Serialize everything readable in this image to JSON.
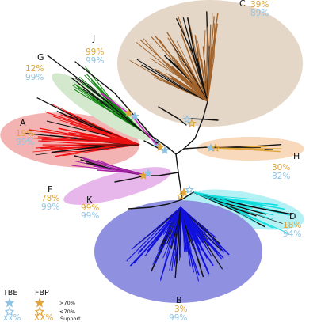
{
  "colors": {
    "fbp": "#e0a43a",
    "tbe": "#8fc4e4",
    "branch": "#111111"
  },
  "clades": [
    {
      "letter": "A",
      "fbp": "19%",
      "tbe": "99%",
      "color": "#ee1111",
      "shade": "#f4b3b3"
    },
    {
      "letter": "B",
      "fbp": "3%",
      "tbe": "99%",
      "color": "#1111dd",
      "shade": "#8f90e0"
    },
    {
      "letter": "C",
      "fbp": "39%",
      "tbe": "89%",
      "color": "#a0622a",
      "shade": "#e4d7c8"
    },
    {
      "letter": "D",
      "fbp": "18%",
      "tbe": "94%",
      "color": "#11dddd",
      "shade": "#b3f1f4"
    },
    {
      "letter": "F",
      "fbp": "78%",
      "tbe": "99%",
      "color": "#111111",
      "shade": "#ffffff"
    },
    {
      "letter": "G",
      "fbp": "12%",
      "tbe": "99%",
      "color": "#118811",
      "shade": "#d3e8cd"
    },
    {
      "letter": "H",
      "fbp": "30%",
      "tbe": "82%",
      "color": "#e0a43a",
      "shade": "#f8d9bc"
    },
    {
      "letter": "J",
      "fbp": "99%",
      "tbe": "99%",
      "color": "#dd22cc",
      "shade": "#ffffff"
    },
    {
      "letter": "K",
      "fbp": "99%",
      "tbe": "99%",
      "color": "#aa22aa",
      "shade": "#e7b6ea"
    }
  ],
  "legend": {
    "tbe_title": "TBE",
    "fbp_title": "FBP",
    "gt_label": ">70%",
    "le_label": "≤70%",
    "tbe_sample": "xx%",
    "fbp_sample": "XX%",
    "support_label": "Support"
  }
}
